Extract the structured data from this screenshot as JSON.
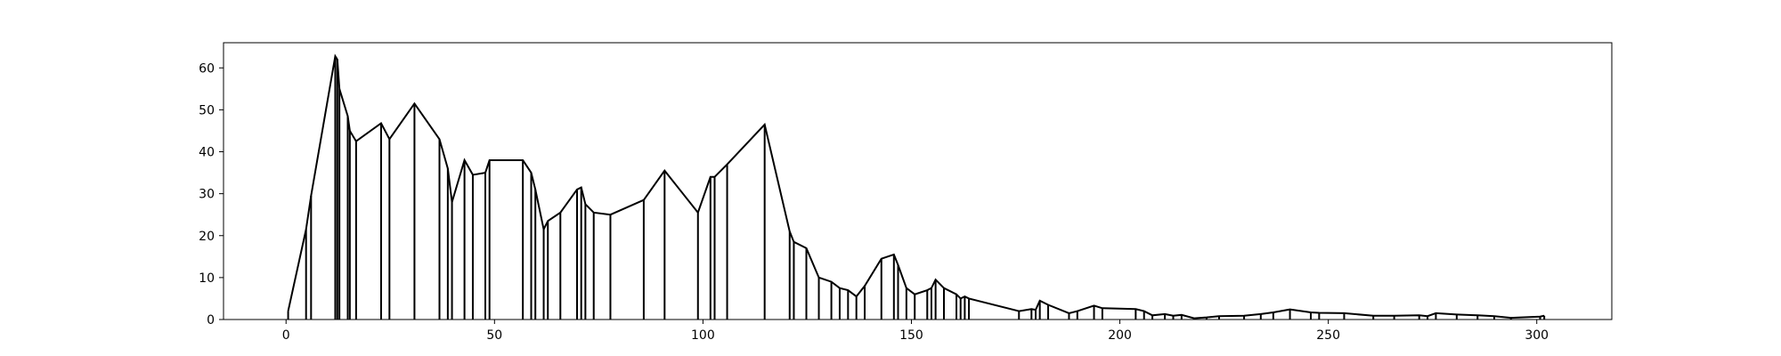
{
  "chart_data": {
    "type": "line",
    "title": "",
    "xlabel": "",
    "ylabel": "",
    "xlim": [
      -15,
      318
    ],
    "ylim": [
      0,
      66
    ],
    "xticks": [
      0,
      50,
      100,
      150,
      200,
      250,
      300
    ],
    "yticks": [
      0,
      10,
      20,
      30,
      40,
      50,
      60
    ],
    "grid": false,
    "legend": "none",
    "colors": {
      "line": "#000000",
      "axes": "#000000"
    },
    "series": [
      {
        "points": [
          [
            0.5,
            2.0
          ],
          [
            4.8,
            21.5
          ],
          [
            6.0,
            29.5
          ],
          [
            11.8,
            62.8
          ],
          [
            12.3,
            62.0
          ],
          [
            12.8,
            55.0
          ],
          [
            14.8,
            48.5
          ],
          [
            15.3,
            45.0
          ],
          [
            16.8,
            42.5
          ],
          [
            22.8,
            46.8
          ],
          [
            24.8,
            43.0
          ],
          [
            30.8,
            51.5
          ],
          [
            36.8,
            43.0
          ],
          [
            38.8,
            36.0
          ],
          [
            39.8,
            28.0
          ],
          [
            42.8,
            38.0
          ],
          [
            44.8,
            34.5
          ],
          [
            47.8,
            35.0
          ],
          [
            48.8,
            38.0
          ],
          [
            56.8,
            38.0
          ],
          [
            58.8,
            35.0
          ],
          [
            59.8,
            31.0
          ],
          [
            61.8,
            21.5
          ],
          [
            62.8,
            23.5
          ],
          [
            65.8,
            25.5
          ],
          [
            69.8,
            31.0
          ],
          [
            70.8,
            31.5
          ],
          [
            71.8,
            27.5
          ],
          [
            73.8,
            25.5
          ],
          [
            77.8,
            25.0
          ],
          [
            85.8,
            28.5
          ],
          [
            90.8,
            35.5
          ],
          [
            98.8,
            25.5
          ],
          [
            101.8,
            34.0
          ],
          [
            102.8,
            34.0
          ],
          [
            105.8,
            37.0
          ],
          [
            114.8,
            46.5
          ],
          [
            120.8,
            21.0
          ],
          [
            121.8,
            18.5
          ],
          [
            124.8,
            17.0
          ],
          [
            127.8,
            10.0
          ],
          [
            130.8,
            9.0
          ],
          [
            132.8,
            7.5
          ],
          [
            134.8,
            7.0
          ],
          [
            136.8,
            5.5
          ],
          [
            138.8,
            8.0
          ],
          [
            142.8,
            14.5
          ],
          [
            145.8,
            15.5
          ],
          [
            146.8,
            13.0
          ],
          [
            148.8,
            7.5
          ],
          [
            150.8,
            6.0
          ],
          [
            153.8,
            7.0
          ],
          [
            154.8,
            7.5
          ],
          [
            155.8,
            9.5
          ],
          [
            157.8,
            7.5
          ],
          [
            160.8,
            6.0
          ],
          [
            161.8,
            5.0
          ],
          [
            162.8,
            5.5
          ],
          [
            163.8,
            5.0
          ],
          [
            175.8,
            2.0
          ],
          [
            178.8,
            2.5
          ],
          [
            179.8,
            2.3
          ],
          [
            180.8,
            4.5
          ],
          [
            182.8,
            3.5
          ],
          [
            187.8,
            1.5
          ],
          [
            189.8,
            2.0
          ],
          [
            193.8,
            3.3
          ],
          [
            195.8,
            2.7
          ],
          [
            203.8,
            2.5
          ],
          [
            205.8,
            2.0
          ],
          [
            207.8,
            1.0
          ],
          [
            210.8,
            1.3
          ],
          [
            212.8,
            0.9
          ],
          [
            214.8,
            1.1
          ],
          [
            217.8,
            0.3
          ],
          [
            220.8,
            0.5
          ],
          [
            223.8,
            0.8
          ],
          [
            229.8,
            0.9
          ],
          [
            233.8,
            1.3
          ],
          [
            236.8,
            1.7
          ],
          [
            240.8,
            2.4
          ],
          [
            245.8,
            1.7
          ],
          [
            247.8,
            1.6
          ],
          [
            253.8,
            1.5
          ],
          [
            260.8,
            0.9
          ],
          [
            265.8,
            0.9
          ],
          [
            271.8,
            1.0
          ],
          [
            273.8,
            0.8
          ],
          [
            275.8,
            1.5
          ],
          [
            280.8,
            1.2
          ],
          [
            285.8,
            1.0
          ],
          [
            289.8,
            0.8
          ],
          [
            293.8,
            0.4
          ],
          [
            300.8,
            0.7
          ],
          [
            301.8,
            0.9
          ]
        ]
      }
    ]
  }
}
